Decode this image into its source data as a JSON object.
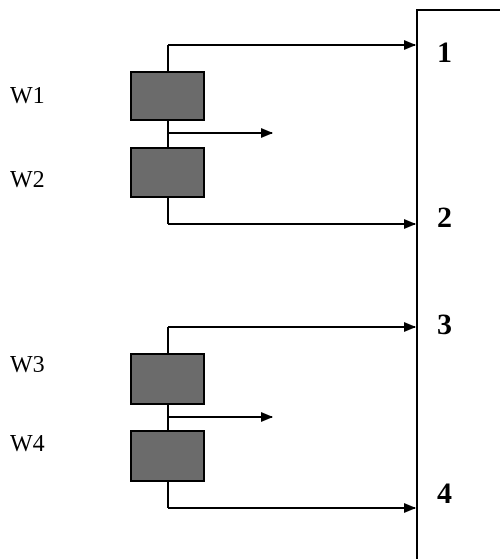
{
  "diagram": {
    "windings": [
      {
        "label": "W1"
      },
      {
        "label": "W2"
      },
      {
        "label": "W3"
      },
      {
        "label": "W4"
      }
    ],
    "terminals": [
      {
        "label": "1"
      },
      {
        "label": "2"
      },
      {
        "label": "3"
      },
      {
        "label": "4"
      }
    ],
    "colors": {
      "winding_fill": "#6b6b6b",
      "lines": "#000000",
      "background": "#ffffff"
    }
  }
}
